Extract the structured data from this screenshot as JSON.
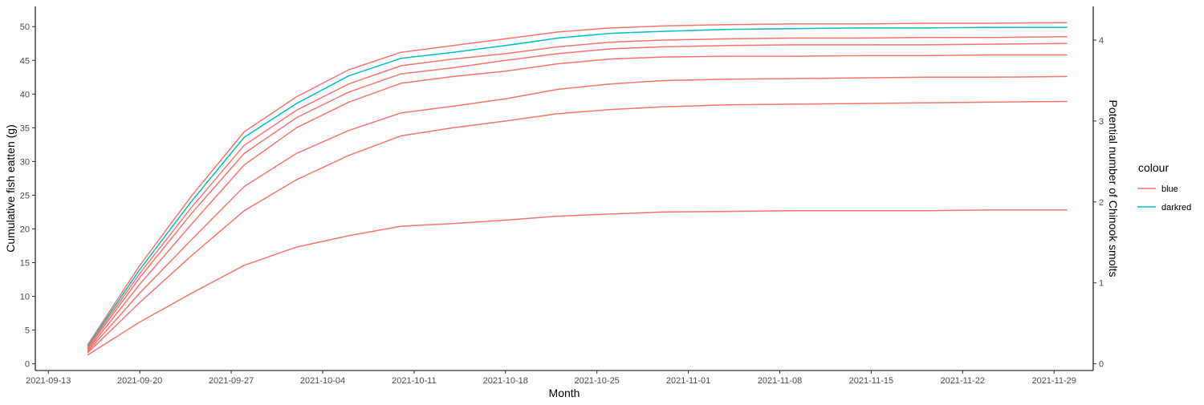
{
  "chart_data": {
    "type": "line",
    "xlabel": "Month",
    "ylabel": "Cumulative fish eatten (g)",
    "y2label": "Potential number of Chinook smolts",
    "x_ticks": [
      "2021-09-13",
      "2021-09-20",
      "2021-09-27",
      "2021-10-04",
      "2021-10-11",
      "2021-10-18",
      "2021-10-25",
      "2021-11-01",
      "2021-11-08",
      "2021-11-15",
      "2021-11-22",
      "2021-11-29"
    ],
    "xlim": [
      "2021-09-12",
      "2021-12-02"
    ],
    "ylim": [
      -1,
      53
    ],
    "y_ticks": [
      0,
      5,
      10,
      15,
      20,
      25,
      30,
      35,
      40,
      45,
      50
    ],
    "y2_ticks": [
      0,
      1,
      2,
      3,
      4
    ],
    "y2_scale": 12,
    "grid": false,
    "legend": {
      "title": "colour",
      "position": "right",
      "entries": [
        {
          "label": "blue",
          "color": "#F8766D"
        },
        {
          "label": "darkred",
          "color": "#00BFC4"
        }
      ]
    },
    "x": [
      "2021-09-16",
      "2021-09-20",
      "2021-09-24",
      "2021-09-28",
      "2021-10-02",
      "2021-10-06",
      "2021-10-10",
      "2021-10-14",
      "2021-10-18",
      "2021-10-22",
      "2021-10-26",
      "2021-10-30",
      "2021-11-04",
      "2021-11-09",
      "2021-11-14",
      "2021-11-19",
      "2021-11-24",
      "2021-11-30"
    ],
    "series": [
      {
        "legend": "blue",
        "color": "#F8766D",
        "values": [
          1.3,
          6.2,
          10.5,
          14.6,
          17.3,
          19.0,
          20.4,
          20.8,
          21.3,
          21.9,
          22.2,
          22.5,
          22.6,
          22.7,
          22.7,
          22.7,
          22.8,
          22.8
        ]
      },
      {
        "legend": "blue",
        "color": "#F8766D",
        "values": [
          1.6,
          9.1,
          16.1,
          22.7,
          27.3,
          30.9,
          33.8,
          35.0,
          36.0,
          37.1,
          37.7,
          38.1,
          38.4,
          38.5,
          38.6,
          38.7,
          38.8,
          38.9
        ]
      },
      {
        "legend": "blue",
        "color": "#F8766D",
        "values": [
          1.8,
          10.5,
          18.5,
          26.3,
          31.2,
          34.6,
          37.2,
          38.2,
          39.3,
          40.7,
          41.5,
          42.0,
          42.2,
          42.3,
          42.4,
          42.5,
          42.5,
          42.6
        ]
      },
      {
        "legend": "blue",
        "color": "#F8766D",
        "values": [
          2.0,
          11.8,
          20.8,
          29.5,
          35.0,
          38.8,
          41.6,
          42.6,
          43.4,
          44.5,
          45.2,
          45.5,
          45.6,
          45.6,
          45.7,
          45.7,
          45.8,
          45.8
        ]
      },
      {
        "legend": "blue",
        "color": "#F8766D",
        "values": [
          2.2,
          12.8,
          22.4,
          31.2,
          36.5,
          40.3,
          43.0,
          43.9,
          45.0,
          46.0,
          46.7,
          47.0,
          47.2,
          47.3,
          47.3,
          47.3,
          47.4,
          47.5
        ]
      },
      {
        "legend": "blue",
        "color": "#F8766D",
        "values": [
          2.4,
          13.4,
          23.3,
          32.4,
          37.6,
          41.5,
          44.2,
          45.2,
          46.0,
          47.0,
          47.7,
          48.0,
          48.2,
          48.3,
          48.3,
          48.4,
          48.4,
          48.5
        ]
      },
      {
        "legend": "darkred",
        "color": "#00BFC4",
        "values": [
          2.6,
          14.0,
          24.2,
          33.6,
          38.6,
          42.7,
          45.3,
          46.2,
          47.2,
          48.3,
          49.0,
          49.3,
          49.6,
          49.7,
          49.8,
          49.8,
          49.9,
          49.9
        ]
      },
      {
        "legend": "blue",
        "color": "#F8766D",
        "values": [
          2.8,
          14.6,
          25.0,
          34.4,
          39.6,
          43.6,
          46.2,
          47.2,
          48.2,
          49.2,
          49.8,
          50.1,
          50.3,
          50.4,
          50.4,
          50.5,
          50.5,
          50.6
        ]
      }
    ]
  }
}
